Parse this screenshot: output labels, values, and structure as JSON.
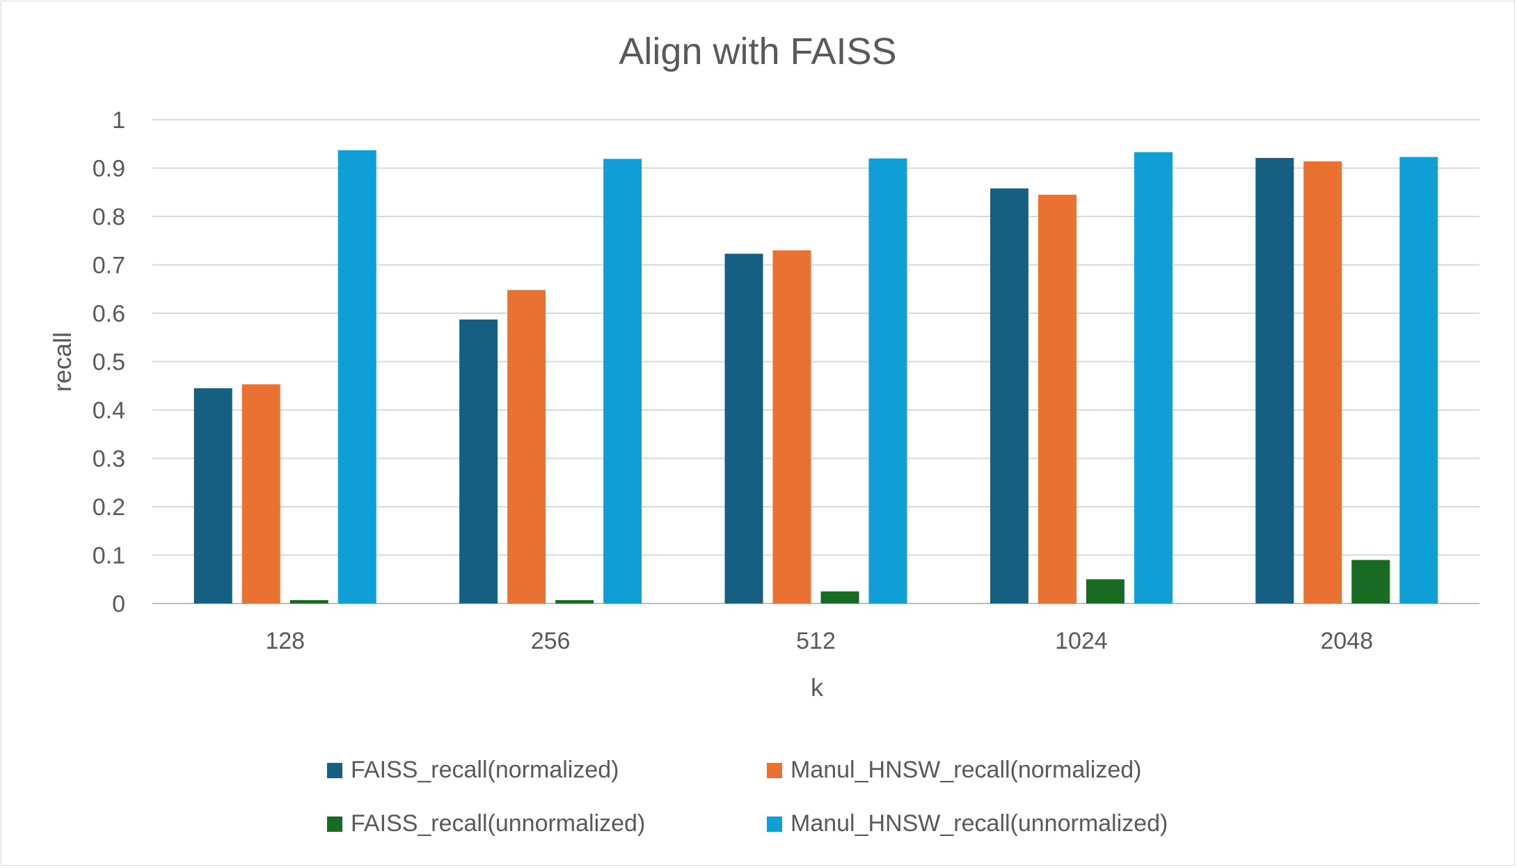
{
  "chart_data": {
    "type": "bar",
    "title": "Align with FAISS",
    "xlabel": "k",
    "ylabel": "recall",
    "categories": [
      "128",
      "256",
      "512",
      "1024",
      "2048"
    ],
    "ylim": [
      0,
      1
    ],
    "yticks": [
      "0",
      "0.1",
      "0.2",
      "0.3",
      "0.4",
      "0.5",
      "0.6",
      "0.7",
      "0.8",
      "0.9",
      "1"
    ],
    "grid": true,
    "legend_position": "bottom",
    "series": [
      {
        "name": "FAISS_recall(normalized)",
        "color": "#156082",
        "values": [
          0.445,
          0.587,
          0.723,
          0.858,
          0.921
        ]
      },
      {
        "name": "Manul_HNSW_recall(normalized)",
        "color": "#E97132",
        "values": [
          0.453,
          0.648,
          0.73,
          0.845,
          0.914
        ]
      },
      {
        "name": "FAISS_recall(unnormalized)",
        "color": "#196B24",
        "values": [
          0.007,
          0.007,
          0.025,
          0.05,
          0.09
        ]
      },
      {
        "name": "Manul_HNSW_recall(unnormalized)",
        "color": "#0F9ED5",
        "values": [
          0.937,
          0.919,
          0.92,
          0.933,
          0.923
        ]
      }
    ]
  }
}
